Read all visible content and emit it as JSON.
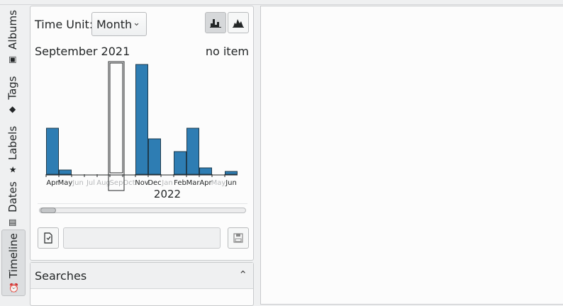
{
  "sidebar_tabs": [
    {
      "label": "Albums",
      "icon": "image-icon"
    },
    {
      "label": "Tags",
      "icon": "tag-icon"
    },
    {
      "label": "Labels",
      "icon": "star-icon"
    },
    {
      "label": "Dates",
      "icon": "calendar-icon"
    },
    {
      "label": "Timeline",
      "icon": "clock-icon",
      "active": true
    }
  ],
  "timeline": {
    "time_unit_label": "Time Unit:",
    "time_unit_value": "Month",
    "linear_scale_icon": "linear-histogram-icon",
    "log_scale_icon": "log-histogram-icon",
    "selected_period": "September 2021",
    "item_count": "no item",
    "year_label": "2022",
    "save_search_placeholder": ""
  },
  "chart_data": {
    "type": "bar",
    "categories": [
      "Apr",
      "May",
      "Jun",
      "Jul",
      "Aug",
      "Sep",
      "Oct",
      "Nov",
      "Dec",
      "Jan",
      "Feb",
      "Mar",
      "Apr",
      "May",
      "Jun"
    ],
    "values": [
      65,
      6,
      0,
      0,
      0,
      0,
      0,
      155,
      50,
      0,
      32,
      65,
      9,
      0,
      4
    ],
    "dimmed": [
      false,
      false,
      true,
      true,
      true,
      true,
      true,
      false,
      false,
      true,
      false,
      false,
      false,
      true,
      false
    ],
    "selected_index": 5,
    "year_marker": "2022",
    "color": "#2e7db3"
  },
  "searches": {
    "title": "Searches"
  }
}
